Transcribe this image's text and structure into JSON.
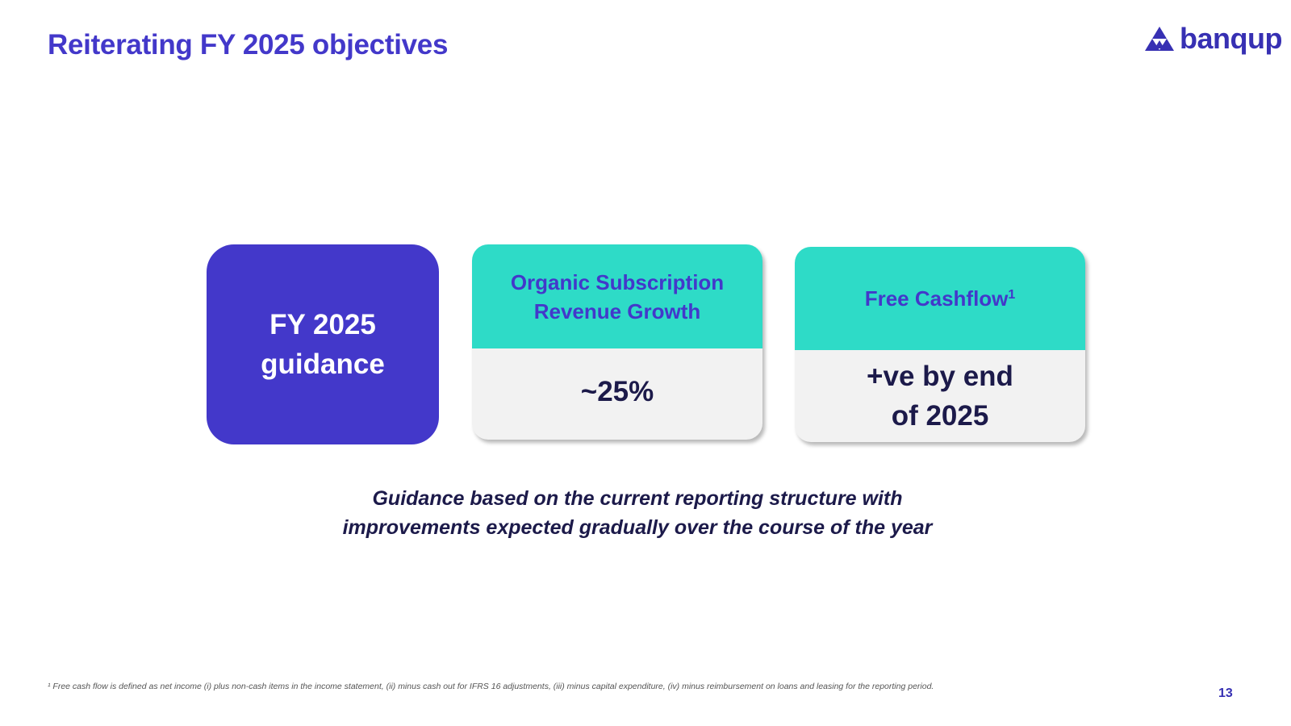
{
  "header": {
    "title": "Reiterating FY 2025 objectives",
    "logo_text": "banqup",
    "logo_icon": "triangle-mountain-icon"
  },
  "guidance": {
    "line1": "FY 2025",
    "line2": "guidance"
  },
  "cards": [
    {
      "title_line1": "Organic Subscription",
      "title_line2": "Revenue Growth",
      "value": "~25%"
    },
    {
      "title": "Free Cashflow",
      "title_superscript": "1",
      "value_line1": "+ve by end",
      "value_line2": "of 2025"
    }
  ],
  "note": {
    "line1": "Guidance based on the current reporting structure with",
    "line2": "improvements expected gradually over the course of the year"
  },
  "footer": {
    "footnote_marker": "¹",
    "footnote": "Free cash flow is defined as net income (i) plus non-cash items in the income statement, (ii) minus cash out for IFRS 16 adjustments, (iii) minus capital expenditure, (iv) minus reimbursement on loans and leasing for the reporting period.",
    "page_number": "13"
  },
  "colors": {
    "brand_purple": "#4338CA",
    "teal": "#2EDBC7",
    "dark_navy": "#1C1A4A",
    "card_body_grey": "#F2F2F2"
  }
}
